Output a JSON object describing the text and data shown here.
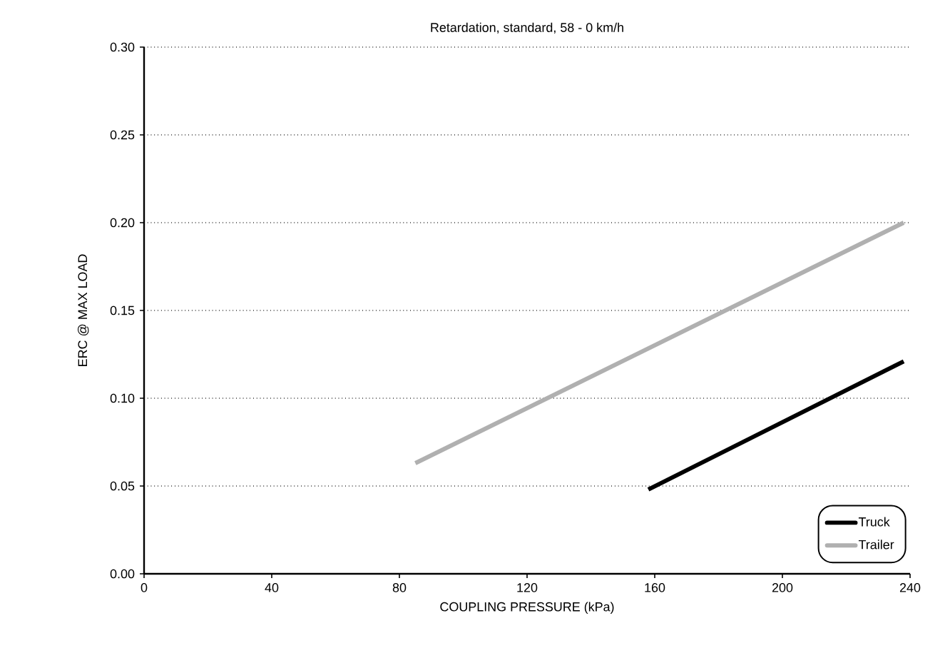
{
  "chart_data": {
    "type": "line",
    "title": "Retardation, standard, 58 - 0 km/h",
    "xlabel": "COUPLING PRESSURE (kPa)",
    "ylabel": "ERC @ MAX LOAD",
    "xlim": [
      0,
      240
    ],
    "xticks": [
      0,
      40,
      80,
      120,
      160,
      200,
      240
    ],
    "ylim": [
      0,
      0.3
    ],
    "yticks": [
      {
        "value": 0,
        "label": "0.00"
      },
      {
        "value": 0.05,
        "label": "0.05"
      },
      {
        "value": 0.1,
        "label": "0.10"
      },
      {
        "value": 0.15,
        "label": "0.15"
      },
      {
        "value": 0.2,
        "label": "0.20"
      },
      {
        "value": 0.25,
        "label": "0.25"
      },
      {
        "value": 0.3,
        "label": "0.30"
      }
    ],
    "grid": "y",
    "legend": "bottom right",
    "marker": "none",
    "line_style": "solid",
    "series": [
      {
        "name": "Truck",
        "color": "#000000",
        "x": [
          158,
          238
        ],
        "values": [
          0.048,
          0.121
        ]
      },
      {
        "name": "Trailer",
        "color": "#b0b0b0",
        "x": [
          85,
          238
        ],
        "values": [
          0.063,
          0.2
        ]
      }
    ]
  }
}
